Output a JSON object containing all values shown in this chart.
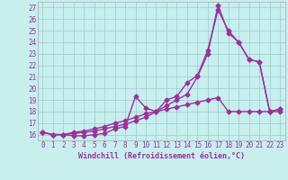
{
  "xlabel": "Windchill (Refroidissement éolien,°C)",
  "bg_color": "#c8eeee",
  "line_color": "#993399",
  "grid_color": "#99cccc",
  "xlim": [
    -0.5,
    23.5
  ],
  "ylim": [
    15.5,
    27.5
  ],
  "xticks": [
    0,
    1,
    2,
    3,
    4,
    5,
    6,
    7,
    8,
    9,
    10,
    11,
    12,
    13,
    14,
    15,
    16,
    17,
    18,
    19,
    20,
    21,
    22,
    23
  ],
  "yticks": [
    16,
    17,
    18,
    19,
    20,
    21,
    22,
    23,
    24,
    25,
    26,
    27
  ],
  "line1_x": [
    0,
    1,
    2,
    3,
    4,
    5,
    6,
    7,
    8,
    9,
    10,
    11,
    12,
    13,
    14,
    15,
    16,
    17,
    18,
    19,
    20,
    21,
    22,
    23
  ],
  "line1_y": [
    16.2,
    16.0,
    16.0,
    15.9,
    15.9,
    16.0,
    16.1,
    16.5,
    16.7,
    19.3,
    18.3,
    18.0,
    18.5,
    19.0,
    19.5,
    21.0,
    23.0,
    27.2,
    24.8,
    24.0,
    22.5,
    22.3,
    18.0,
    18.2
  ],
  "line2_x": [
    0,
    1,
    2,
    3,
    4,
    5,
    6,
    7,
    8,
    9,
    10,
    11,
    12,
    13,
    14,
    15,
    16,
    17,
    18,
    19,
    20,
    21,
    22,
    23
  ],
  "line2_y": [
    16.2,
    16.0,
    16.0,
    16.1,
    16.2,
    16.3,
    16.5,
    16.7,
    16.9,
    17.2,
    17.5,
    18.0,
    19.0,
    19.3,
    20.5,
    21.1,
    23.3,
    26.8,
    25.0,
    24.0,
    22.5,
    22.3,
    18.0,
    18.2
  ],
  "line3_x": [
    0,
    1,
    2,
    3,
    4,
    5,
    6,
    7,
    8,
    9,
    10,
    11,
    12,
    13,
    14,
    15,
    16,
    17,
    18,
    19,
    20,
    21,
    22,
    23
  ],
  "line3_y": [
    16.2,
    16.0,
    16.0,
    16.2,
    16.3,
    16.5,
    16.7,
    17.0,
    17.2,
    17.5,
    17.8,
    18.0,
    18.2,
    18.4,
    18.6,
    18.8,
    19.0,
    19.2,
    18.0,
    18.0,
    18.0,
    18.0,
    18.0,
    18.0
  ],
  "marker": "D",
  "markersize": 2.5,
  "linewidth": 1.0,
  "xlabel_fontsize": 6,
  "tick_fontsize": 5.5
}
